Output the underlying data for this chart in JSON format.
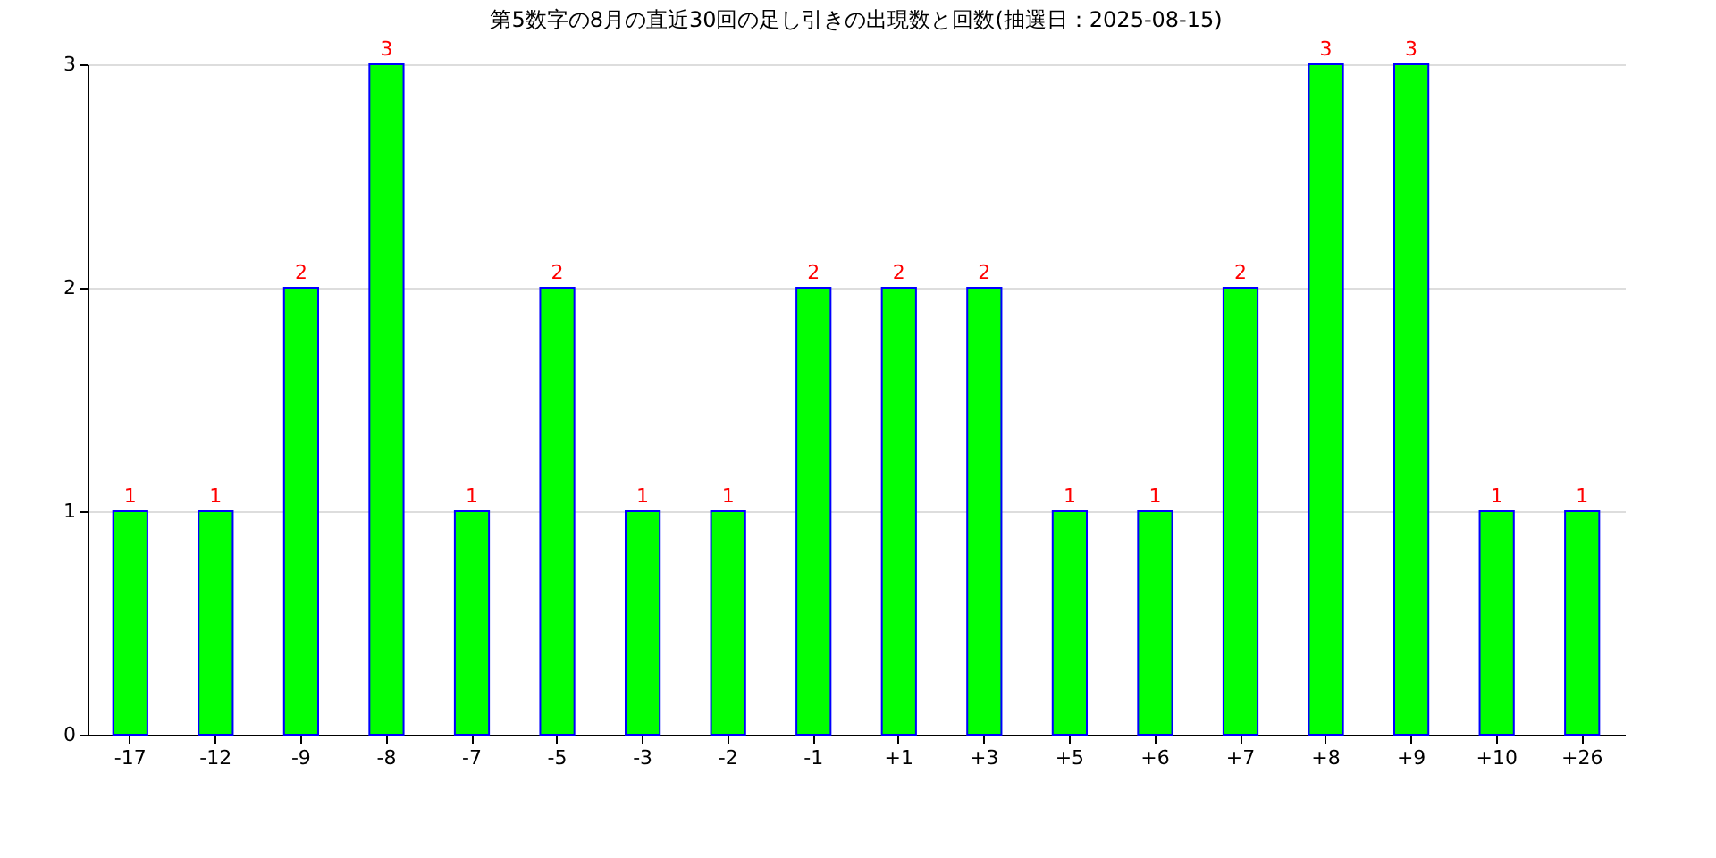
{
  "chart_data": {
    "type": "bar",
    "title": "第5数字の8月の直近30回の足し引きの出現数と回数(抽選日：2025-08-15)",
    "categories": [
      "-17",
      "-12",
      "-9",
      "-8",
      "-7",
      "-5",
      "-3",
      "-2",
      "-1",
      "+1",
      "+3",
      "+5",
      "+6",
      "+7",
      "+8",
      "+9",
      "+10",
      "+26"
    ],
    "values": [
      1,
      1,
      2,
      3,
      1,
      2,
      1,
      1,
      2,
      2,
      2,
      1,
      1,
      2,
      3,
      3,
      1,
      1
    ],
    "color": "#00ff00",
    "ylim": [
      0,
      3
    ],
    "yticks": [
      0,
      1,
      2,
      3
    ],
    "grid": "y",
    "data_labels": true
  }
}
